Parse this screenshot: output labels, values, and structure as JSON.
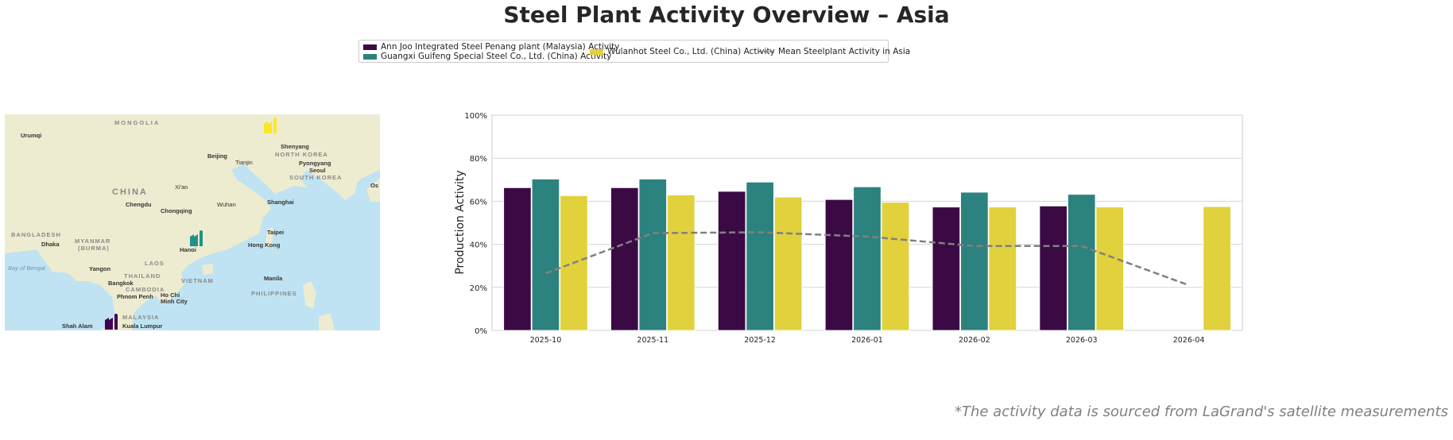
{
  "title": "Steel Plant Activity Overview – Asia",
  "footnote": "*The activity data is sourced from LaGrand's satellite measurements",
  "map": {
    "labels": [
      "MONGOLIA",
      "Urumqi",
      "Shenyang",
      "Beijing",
      "Tianjin",
      "NORTH KOREA",
      "Pyongyang",
      "Seoul",
      "SOUTH KOREA",
      "Os",
      "CHINA",
      "Xi'an",
      "Chengdu",
      "Chongqing",
      "Wuhan",
      "Shanghai",
      "BANGLADESH",
      "MYANMAR",
      "(BURMA)",
      "Dhaka",
      "Hanoi",
      "Hong Kong",
      "Taipei",
      "Bay of Bengal",
      "Yangon",
      "LAOS",
      "THAILAND",
      "Bangkok",
      "VIETNAM",
      "CAMBODIA",
      "Phnom Penh",
      "Ho Chi",
      "Minh City",
      "Manila",
      "PHILIPPINES",
      "Kuala Lumpur",
      "Shah Alam",
      "MALAYSIA"
    ],
    "markers": [
      {
        "plant": "Wulanhot Steel Co., Ltd. (China)",
        "icon": "factory-icon",
        "color": "#FDE725"
      },
      {
        "plant": "Guangxi Guifeng Special Steel Co., Ltd. (China)",
        "icon": "factory-icon",
        "color": "#21918C"
      },
      {
        "plant": "Ann Joo Integrated Steel Penang plant (Malaysia)",
        "icon": "factory-icon",
        "color": "#440154"
      }
    ]
  },
  "chart_data": {
    "type": "bar",
    "title": "",
    "xlabel": "",
    "ylabel": "Production Activity",
    "ylim": [
      0,
      100
    ],
    "yticks": [
      "0%",
      "20%",
      "40%",
      "60%",
      "80%",
      "100%"
    ],
    "grid": true,
    "legend_placement": "top-center",
    "categories": [
      "2025-10",
      "2025-11",
      "2025-12",
      "2026-01",
      "2026-02",
      "2026-03",
      "2026-04"
    ],
    "series": [
      {
        "name": "Ann Joo Integrated Steel Penang plant (Malaysia) Activity",
        "color": "#3B0A45",
        "values": [
          66.3,
          66.3,
          64.6,
          60.8,
          57.3,
          57.8,
          null
        ]
      },
      {
        "name": "Guangxi Guifeng Special Steel Co., Ltd. (China) Activity",
        "color": "#2C827E",
        "values": [
          70.3,
          70.3,
          68.9,
          66.7,
          64.2,
          63.2,
          null
        ]
      },
      {
        "name": "Wulanhot Steel Co., Ltd. (China) Activity",
        "color": "#E1D13C",
        "values": [
          62.6,
          62.9,
          61.9,
          59.5,
          57.3,
          57.3,
          57.5
        ]
      }
    ],
    "line": {
      "name": "Mean Steelplant Activity in Asia",
      "color": "#808080",
      "style": "dashed",
      "values": [
        26.5,
        45.2,
        45.6,
        43.6,
        39.2,
        39.2,
        21.0
      ]
    }
  }
}
